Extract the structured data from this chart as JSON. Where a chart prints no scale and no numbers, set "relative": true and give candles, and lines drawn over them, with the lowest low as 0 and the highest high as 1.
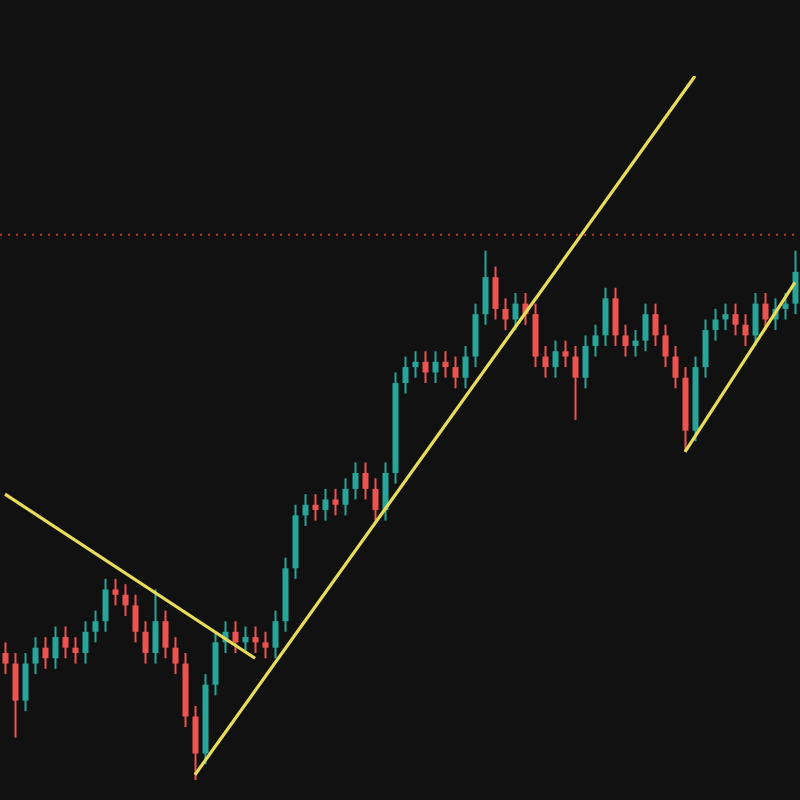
{
  "chart_data": {
    "type": "candlestick",
    "relative": true,
    "categories": [
      null,
      null,
      null,
      null,
      null,
      null,
      null,
      null,
      null,
      null,
      null,
      null,
      null,
      null,
      null,
      null,
      null,
      null,
      null,
      null,
      null,
      null,
      null,
      null,
      null,
      null,
      null,
      null,
      null,
      null,
      null,
      null,
      null,
      null,
      null,
      null,
      null,
      null,
      null,
      null,
      null,
      null,
      null,
      null,
      null,
      null,
      null,
      null,
      null,
      null,
      null,
      null,
      null,
      null,
      null,
      null,
      null,
      null,
      null,
      null,
      null,
      null,
      null,
      null,
      null,
      null,
      null,
      null,
      null,
      null,
      null,
      null,
      null,
      null,
      null,
      null,
      null,
      null,
      null,
      null
    ],
    "ohlc": [
      [
        0.24,
        0.26,
        0.2,
        0.22
      ],
      [
        0.22,
        0.24,
        0.08,
        0.15
      ],
      [
        0.15,
        0.24,
        0.13,
        0.22
      ],
      [
        0.22,
        0.27,
        0.2,
        0.25
      ],
      [
        0.25,
        0.27,
        0.21,
        0.23
      ],
      [
        0.23,
        0.29,
        0.21,
        0.27
      ],
      [
        0.27,
        0.29,
        0.23,
        0.25
      ],
      [
        0.25,
        0.27,
        0.22,
        0.24
      ],
      [
        0.24,
        0.3,
        0.22,
        0.28
      ],
      [
        0.28,
        0.32,
        0.26,
        0.3
      ],
      [
        0.3,
        0.38,
        0.28,
        0.36
      ],
      [
        0.36,
        0.38,
        0.33,
        0.35
      ],
      [
        0.35,
        0.37,
        0.31,
        0.33
      ],
      [
        0.33,
        0.35,
        0.26,
        0.28
      ],
      [
        0.28,
        0.3,
        0.22,
        0.24
      ],
      [
        0.24,
        0.36,
        0.22,
        0.3
      ],
      [
        0.3,
        0.32,
        0.23,
        0.25
      ],
      [
        0.25,
        0.27,
        0.2,
        0.22
      ],
      [
        0.22,
        0.24,
        0.1,
        0.12
      ],
      [
        0.12,
        0.14,
        0,
        0.05
      ],
      [
        0.05,
        0.2,
        0.03,
        0.18
      ],
      [
        0.18,
        0.28,
        0.16,
        0.26
      ],
      [
        0.26,
        0.3,
        0.24,
        0.28
      ],
      [
        0.28,
        0.3,
        0.24,
        0.26
      ],
      [
        0.26,
        0.29,
        0.24,
        0.27
      ],
      [
        0.27,
        0.29,
        0.24,
        0.26
      ],
      [
        0.26,
        0.28,
        0.23,
        0.25
      ],
      [
        0.25,
        0.32,
        0.23,
        0.3
      ],
      [
        0.3,
        0.42,
        0.28,
        0.4
      ],
      [
        0.4,
        0.52,
        0.38,
        0.5
      ],
      [
        0.5,
        0.54,
        0.48,
        0.52
      ],
      [
        0.52,
        0.54,
        0.49,
        0.51
      ],
      [
        0.51,
        0.55,
        0.49,
        0.53
      ],
      [
        0.53,
        0.55,
        0.5,
        0.52
      ],
      [
        0.52,
        0.57,
        0.5,
        0.55
      ],
      [
        0.55,
        0.6,
        0.53,
        0.58
      ],
      [
        0.58,
        0.6,
        0.53,
        0.55
      ],
      [
        0.55,
        0.57,
        0.49,
        0.51
      ],
      [
        0.51,
        0.6,
        0.49,
        0.58
      ],
      [
        0.58,
        0.77,
        0.56,
        0.75
      ],
      [
        0.75,
        0.8,
        0.73,
        0.78
      ],
      [
        0.78,
        0.81,
        0.76,
        0.79
      ],
      [
        0.79,
        0.81,
        0.75,
        0.77
      ],
      [
        0.77,
        0.81,
        0.75,
        0.79
      ],
      [
        0.79,
        0.81,
        0.76,
        0.78
      ],
      [
        0.78,
        0.8,
        0.74,
        0.76
      ],
      [
        0.76,
        0.82,
        0.74,
        0.8
      ],
      [
        0.8,
        0.9,
        0.78,
        0.88
      ],
      [
        0.88,
        1,
        0.86,
        0.95
      ],
      [
        0.95,
        0.97,
        0.87,
        0.89
      ],
      [
        0.89,
        0.91,
        0.85,
        0.87
      ],
      [
        0.87,
        0.92,
        0.85,
        0.9
      ],
      [
        0.9,
        0.92,
        0.86,
        0.88
      ],
      [
        0.88,
        0.9,
        0.78,
        0.8
      ],
      [
        0.8,
        0.82,
        0.76,
        0.78
      ],
      [
        0.78,
        0.83,
        0.76,
        0.81
      ],
      [
        0.81,
        0.83,
        0.78,
        0.8
      ],
      [
        0.8,
        0.82,
        0.68,
        0.76
      ],
      [
        0.76,
        0.84,
        0.74,
        0.82
      ],
      [
        0.82,
        0.86,
        0.8,
        0.84
      ],
      [
        0.84,
        0.93,
        0.82,
        0.91
      ],
      [
        0.91,
        0.93,
        0.82,
        0.84
      ],
      [
        0.84,
        0.86,
        0.8,
        0.82
      ],
      [
        0.82,
        0.85,
        0.8,
        0.83
      ],
      [
        0.83,
        0.9,
        0.81,
        0.88
      ],
      [
        0.88,
        0.9,
        0.82,
        0.84
      ],
      [
        0.84,
        0.86,
        0.78,
        0.8
      ],
      [
        0.8,
        0.82,
        0.74,
        0.76
      ],
      [
        0.76,
        0.78,
        0.62,
        0.66
      ],
      [
        0.66,
        0.8,
        0.64,
        0.78
      ],
      [
        0.78,
        0.87,
        0.76,
        0.85
      ],
      [
        0.85,
        0.89,
        0.83,
        0.87
      ],
      [
        0.87,
        0.9,
        0.85,
        0.88
      ],
      [
        0.88,
        0.9,
        0.84,
        0.86
      ],
      [
        0.86,
        0.88,
        0.82,
        0.84
      ],
      [
        0.84,
        0.92,
        0.82,
        0.9
      ],
      [
        0.9,
        0.92,
        0.85,
        0.87
      ],
      [
        0.87,
        0.91,
        0.85,
        0.89
      ],
      [
        0.89,
        0.92,
        0.87,
        0.9
      ],
      [
        0.9,
        1,
        0.88,
        0.96
      ]
    ],
    "colors": [
      "#ef5350",
      "#ef5350",
      "#26a69a",
      "#26a69a",
      "#ef5350",
      "#26a69a",
      "#ef5350",
      "#ef5350",
      "#26a69a",
      "#26a69a",
      "#26a69a",
      "#ef5350",
      "#ef5350",
      "#ef5350",
      "#ef5350",
      "#26a69a",
      "#ef5350",
      "#ef5350",
      "#ef5350",
      "#ef5350",
      "#26a69a",
      "#26a69a",
      "#26a69a",
      "#ef5350",
      "#26a69a",
      "#ef5350",
      "#ef5350",
      "#26a69a",
      "#26a69a",
      "#26a69a",
      "#26a69a",
      "#ef5350",
      "#26a69a",
      "#ef5350",
      "#26a69a",
      "#26a69a",
      "#ef5350",
      "#ef5350",
      "#26a69a",
      "#26a69a",
      "#26a69a",
      "#26a69a",
      "#ef5350",
      "#26a69a",
      "#ef5350",
      "#ef5350",
      "#26a69a",
      "#26a69a",
      "#26a69a",
      "#ef5350",
      "#ef5350",
      "#26a69a",
      "#ef5350",
      "#ef5350",
      "#ef5350",
      "#26a69a",
      "#ef5350",
      "#ef5350",
      "#26a69a",
      "#26a69a",
      "#26a69a",
      "#ef5350",
      "#ef5350",
      "#26a69a",
      "#26a69a",
      "#ef5350",
      "#ef5350",
      "#ef5350",
      "#ef5350",
      "#26a69a",
      "#26a69a",
      "#26a69a",
      "#26a69a",
      "#ef5350",
      "#ef5350",
      "#26a69a",
      "#ef5350",
      "#26a69a",
      "#26a69a",
      "#26a69a"
    ],
    "series": [
      {
        "type": "line",
        "color": "#e8dc5a",
        "values": [
          0.54,
          null,
          null,
          null,
          null,
          null,
          null,
          null,
          null,
          null,
          null,
          null,
          null,
          null,
          null,
          null,
          null,
          null,
          null,
          null,
          null,
          null,
          null,
          null,
          null,
          0.23,
          null,
          null,
          null,
          null,
          null,
          null,
          null,
          null,
          null,
          null,
          null,
          null,
          null,
          null,
          null,
          null,
          null,
          null,
          null,
          null,
          null,
          null,
          null,
          null,
          null,
          null,
          null,
          null,
          null,
          null,
          null,
          null,
          null,
          null,
          null,
          null,
          null,
          null,
          null,
          null,
          null,
          null,
          null,
          null,
          null,
          null,
          null,
          null,
          null,
          null,
          null,
          null,
          null,
          null
        ]
      },
      {
        "type": "line",
        "color": "#e8dc5a",
        "values": [
          null,
          null,
          null,
          null,
          null,
          null,
          null,
          null,
          null,
          null,
          null,
          null,
          null,
          null,
          null,
          null,
          null,
          null,
          null,
          0.01,
          null,
          null,
          null,
          null,
          null,
          null,
          null,
          null,
          null,
          null,
          null,
          null,
          null,
          null,
          null,
          null,
          null,
          null,
          null,
          null,
          null,
          null,
          null,
          null,
          null,
          null,
          null,
          null,
          null,
          null,
          null,
          null,
          null,
          null,
          null,
          null,
          null,
          null,
          null,
          null,
          null,
          null,
          null,
          null,
          null,
          null,
          null,
          null,
          null,
          1.33,
          null,
          null,
          null,
          null,
          null,
          null,
          null,
          null,
          null,
          null
        ]
      },
      {
        "type": "line",
        "color": "#e8dc5a",
        "values": [
          null,
          null,
          null,
          null,
          null,
          null,
          null,
          null,
          null,
          null,
          null,
          null,
          null,
          null,
          null,
          null,
          null,
          null,
          null,
          null,
          null,
          null,
          null,
          null,
          null,
          null,
          null,
          null,
          null,
          null,
          null,
          null,
          null,
          null,
          null,
          null,
          null,
          null,
          null,
          null,
          null,
          null,
          null,
          null,
          null,
          null,
          null,
          null,
          null,
          null,
          null,
          null,
          null,
          null,
          null,
          null,
          null,
          null,
          null,
          null,
          null,
          null,
          null,
          null,
          null,
          null,
          null,
          null,
          0.62,
          null,
          null,
          null,
          null,
          null,
          null,
          null,
          null,
          null,
          null,
          0.94
        ]
      }
    ],
    "ref_lines": [
      {
        "axis": "y",
        "value": 1.03,
        "color": "#c0392b",
        "line_style": "dotted"
      }
    ]
  }
}
